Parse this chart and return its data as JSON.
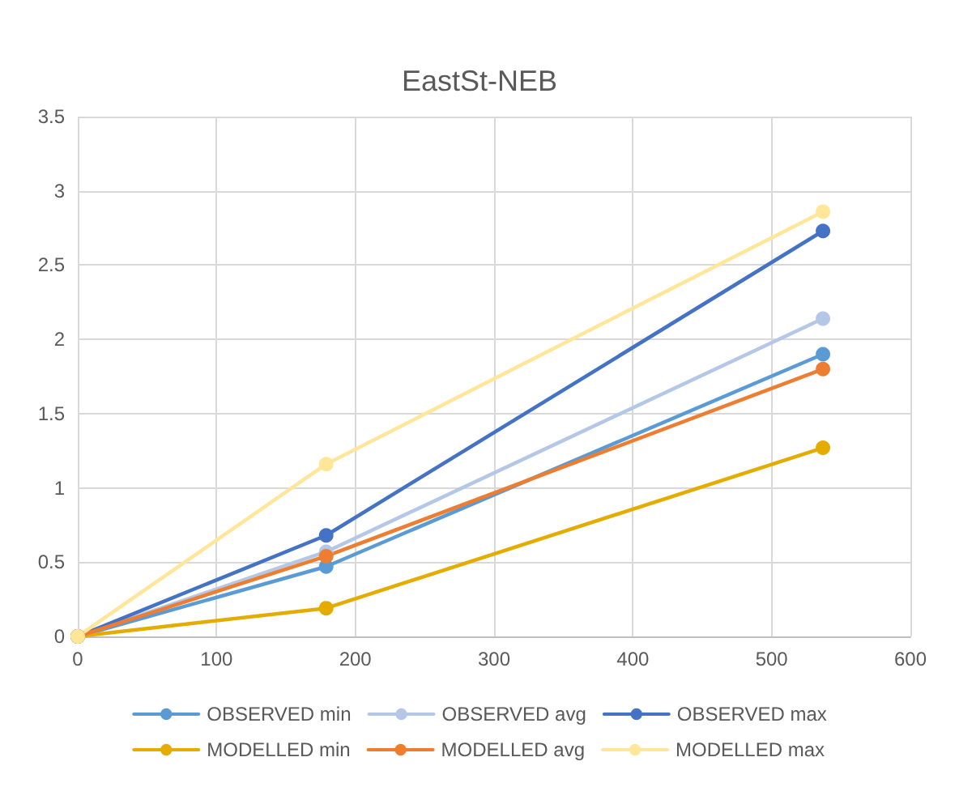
{
  "chart_data": {
    "type": "line",
    "title": "EastSt-NEB",
    "x": [
      0,
      179,
      537
    ],
    "xlim": [
      0,
      600
    ],
    "xticks": [
      0,
      100,
      200,
      300,
      400,
      500,
      600
    ],
    "ylim": [
      0,
      3.5
    ],
    "yticks": [
      0,
      0.5,
      1,
      1.5,
      2,
      2.5,
      3,
      3.5
    ],
    "grid": true,
    "legend": "bottom",
    "marker": "circle",
    "line_style": "solid",
    "series": [
      {
        "name": "OBSERVED min",
        "color": "#5b9bd5",
        "values": [
          0,
          0.47,
          1.9
        ]
      },
      {
        "name": "OBSERVED avg",
        "color": "#b4c7e7",
        "values": [
          0,
          0.57,
          2.14
        ]
      },
      {
        "name": "OBSERVED max",
        "color": "#4472c4",
        "values": [
          0,
          0.68,
          2.73
        ]
      },
      {
        "name": "MODELLED min",
        "color": "#e5ac00",
        "values": [
          0,
          0.19,
          1.27
        ]
      },
      {
        "name": "MODELLED avg",
        "color": "#ed7d31",
        "values": [
          0,
          0.54,
          1.8
        ]
      },
      {
        "name": "MODELLED max",
        "color": "#ffe699",
        "values": [
          0,
          1.16,
          2.86
        ]
      }
    ]
  }
}
